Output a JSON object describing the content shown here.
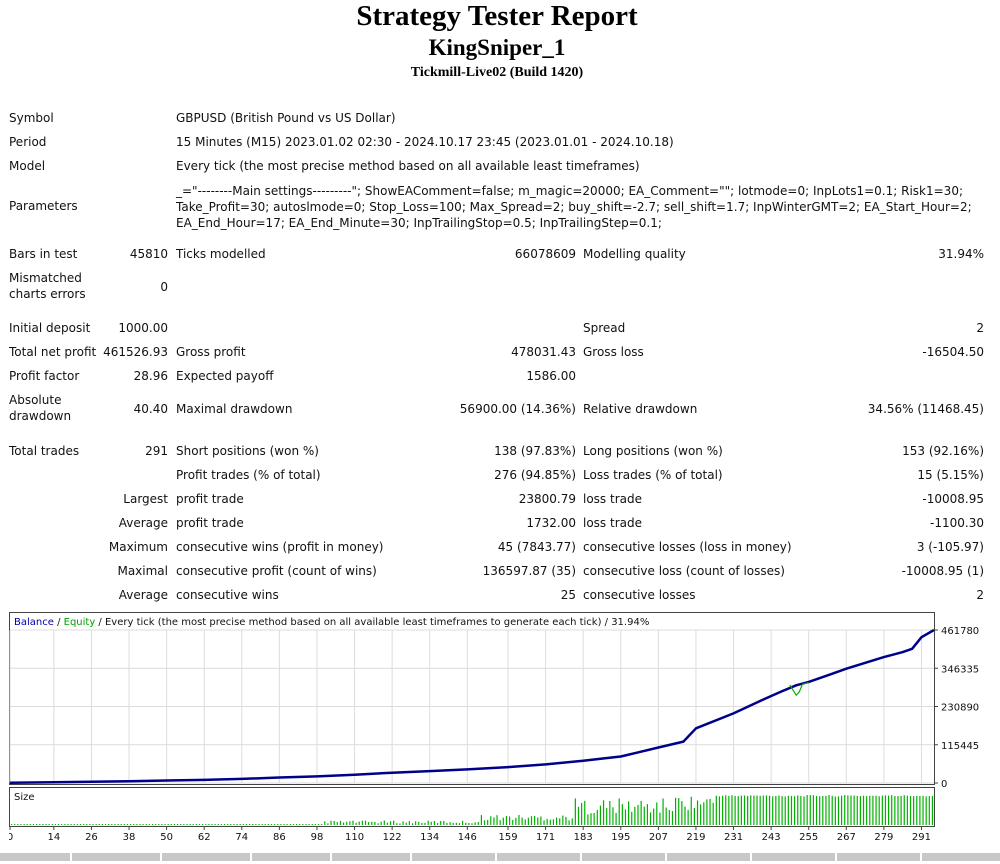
{
  "header": {
    "title": "Strategy Tester Report",
    "expert": "KingSniper_1",
    "server": "Tickmill-Live02 (Build 1420)"
  },
  "info": {
    "symbol_label": "Symbol",
    "symbol_value": "GBPUSD (British Pound vs US Dollar)",
    "period_label": "Period",
    "period_value": "15 Minutes (M15) 2023.01.02 02:30 - 2024.10.17 23:45 (2023.01.01 - 2024.10.18)",
    "model_label": "Model",
    "model_value": "Every tick (the most precise method based on all available least timeframes)",
    "parameters_label": "Parameters",
    "parameters_value": "_=\"--------Main settings---------\"; ShowEAComment=false; m_magic=20000; EA_Comment=\"\"; lotmode=0; InpLots1=0.1; Risk1=30; Take_Profit=30; autoslmode=0; Stop_Loss=100; Max_Spread=2; buy_shift=-2.7; sell_shift=1.7; InpWinterGMT=2; EA_Start_Hour=2; EA_End_Hour=17; EA_End_Minute=30; InpTrailingStop=0.5; InpTrailingStep=0.1;"
  },
  "stats": {
    "bars_label": "Bars in test",
    "bars_value": "45810",
    "ticks_label": "Ticks modelled",
    "ticks_value": "66078609",
    "quality_label": "Modelling quality",
    "quality_value": "31.94%",
    "mismatch_label_1": "Mismatched",
    "mismatch_label_2": "charts errors",
    "mismatch_value": "0",
    "deposit_label": "Initial deposit",
    "deposit_value": "1000.00",
    "spread_label": "Spread",
    "spread_value": "2",
    "net_label": "Total net profit",
    "net_value": "461526.93",
    "gross_profit_label": "Gross profit",
    "gross_profit_value": "478031.43",
    "gross_loss_label": "Gross loss",
    "gross_loss_value": "-16504.50",
    "pf_label": "Profit factor",
    "pf_value": "28.96",
    "ep_label": "Expected payoff",
    "ep_value": "1586.00",
    "abs_dd_label_1": "Absolute",
    "abs_dd_label_2": "drawdown",
    "abs_dd_value": "40.40",
    "max_dd_label": "Maximal drawdown",
    "max_dd_value": "56900.00 (14.36%)",
    "rel_dd_label": "Relative drawdown",
    "rel_dd_value": "34.56% (11468.45)",
    "trades_label": "Total trades",
    "trades_value": "291",
    "short_label": "Short positions (won %)",
    "short_value": "138 (97.83%)",
    "long_label": "Long positions (won %)",
    "long_value": "153 (92.16%)",
    "profit_trades_label": "Profit trades (% of total)",
    "profit_trades_value": "276 (94.85%)",
    "loss_trades_label": "Loss trades (% of total)",
    "loss_trades_value": "15 (5.15%)",
    "largest_label": "Largest",
    "largest_profit_label": "profit trade",
    "largest_profit_value": "23800.79",
    "largest_loss_label": "loss trade",
    "largest_loss_value": "-10008.95",
    "average_label": "Average",
    "avg_profit_label": "profit trade",
    "avg_profit_value": "1732.00",
    "avg_loss_label": "loss trade",
    "avg_loss_value": "-1100.30",
    "maximum_label": "Maximum",
    "max_wins_label": "consecutive wins (profit in money)",
    "max_wins_value": "45 (7843.77)",
    "max_losses_label": "consecutive losses (loss in money)",
    "max_losses_value": "3 (-105.97)",
    "maximal_label": "Maximal",
    "maxl_profit_label": "consecutive profit (count of wins)",
    "maxl_profit_value": "136597.87 (35)",
    "maxl_loss_label": "consecutive loss (count of losses)",
    "maxl_loss_value": "-10008.95 (1)",
    "average2_label": "Average",
    "avg_wins_label": "consecutive wins",
    "avg_wins_value": "25",
    "avg_losses_label": "consecutive losses",
    "avg_losses_value": "2"
  },
  "chart_legend": {
    "balance": "Balance",
    "sep1": " / ",
    "equity": "Equity",
    "rest": " / Every tick (the most precise method based on all available least timeframes to generate each tick) / 31.94%"
  },
  "chart_data": {
    "type": "line",
    "title": "",
    "xlabel": "",
    "ylabel": "",
    "x_ticks": [
      "0",
      "14",
      "26",
      "38",
      "50",
      "62",
      "74",
      "86",
      "98",
      "110",
      "122",
      "134",
      "146",
      "159",
      "171",
      "183",
      "195",
      "207",
      "219",
      "231",
      "243",
      "255",
      "267",
      "279",
      "291"
    ],
    "y_ticks": [
      "461780",
      "346335",
      "230890",
      "115445",
      "0"
    ],
    "ylim": [
      0,
      461780
    ],
    "xlim": [
      0,
      295
    ],
    "colors": {
      "balance": "#00008b",
      "equity": "#00b000",
      "size": "#00b000",
      "grid": "#dcdcdc"
    },
    "series": [
      {
        "name": "Balance",
        "x": [
          0,
          14,
          26,
          38,
          50,
          62,
          74,
          86,
          98,
          110,
          122,
          134,
          146,
          159,
          171,
          183,
          190,
          195,
          207,
          215,
          219,
          231,
          240,
          246,
          251,
          255,
          262,
          267,
          279,
          285,
          288,
          291,
          295
        ],
        "y": [
          1000,
          2500,
          4000,
          5500,
          7500,
          9500,
          12500,
          16500,
          20000,
          25000,
          31000,
          36000,
          41000,
          48000,
          56000,
          67000,
          75000,
          80000,
          107000,
          125000,
          165000,
          210000,
          250000,
          275000,
          295000,
          305000,
          328000,
          345000,
          380000,
          395000,
          405000,
          440000,
          461780
        ]
      },
      {
        "name": "Equity",
        "x": [
          249,
          251,
          252,
          253,
          255
        ],
        "y": [
          296000,
          265000,
          275000,
          298000,
          303000
        ]
      }
    ],
    "size_label": "Size",
    "size_series": {
      "name": "Size",
      "segments": [
        {
          "from": 0,
          "to": 100,
          "min": 0.0,
          "max": 0.03
        },
        {
          "from": 100,
          "to": 150,
          "min": 0.05,
          "max": 0.15
        },
        {
          "from": 150,
          "to": 180,
          "min": 0.15,
          "max": 0.35
        },
        {
          "from": 180,
          "to": 212,
          "min": 0.35,
          "max": 0.9
        },
        {
          "from": 212,
          "to": 225,
          "min": 0.5,
          "max": 1.0
        },
        {
          "from": 225,
          "to": 295,
          "min": 0.95,
          "max": 1.0
        }
      ]
    }
  }
}
